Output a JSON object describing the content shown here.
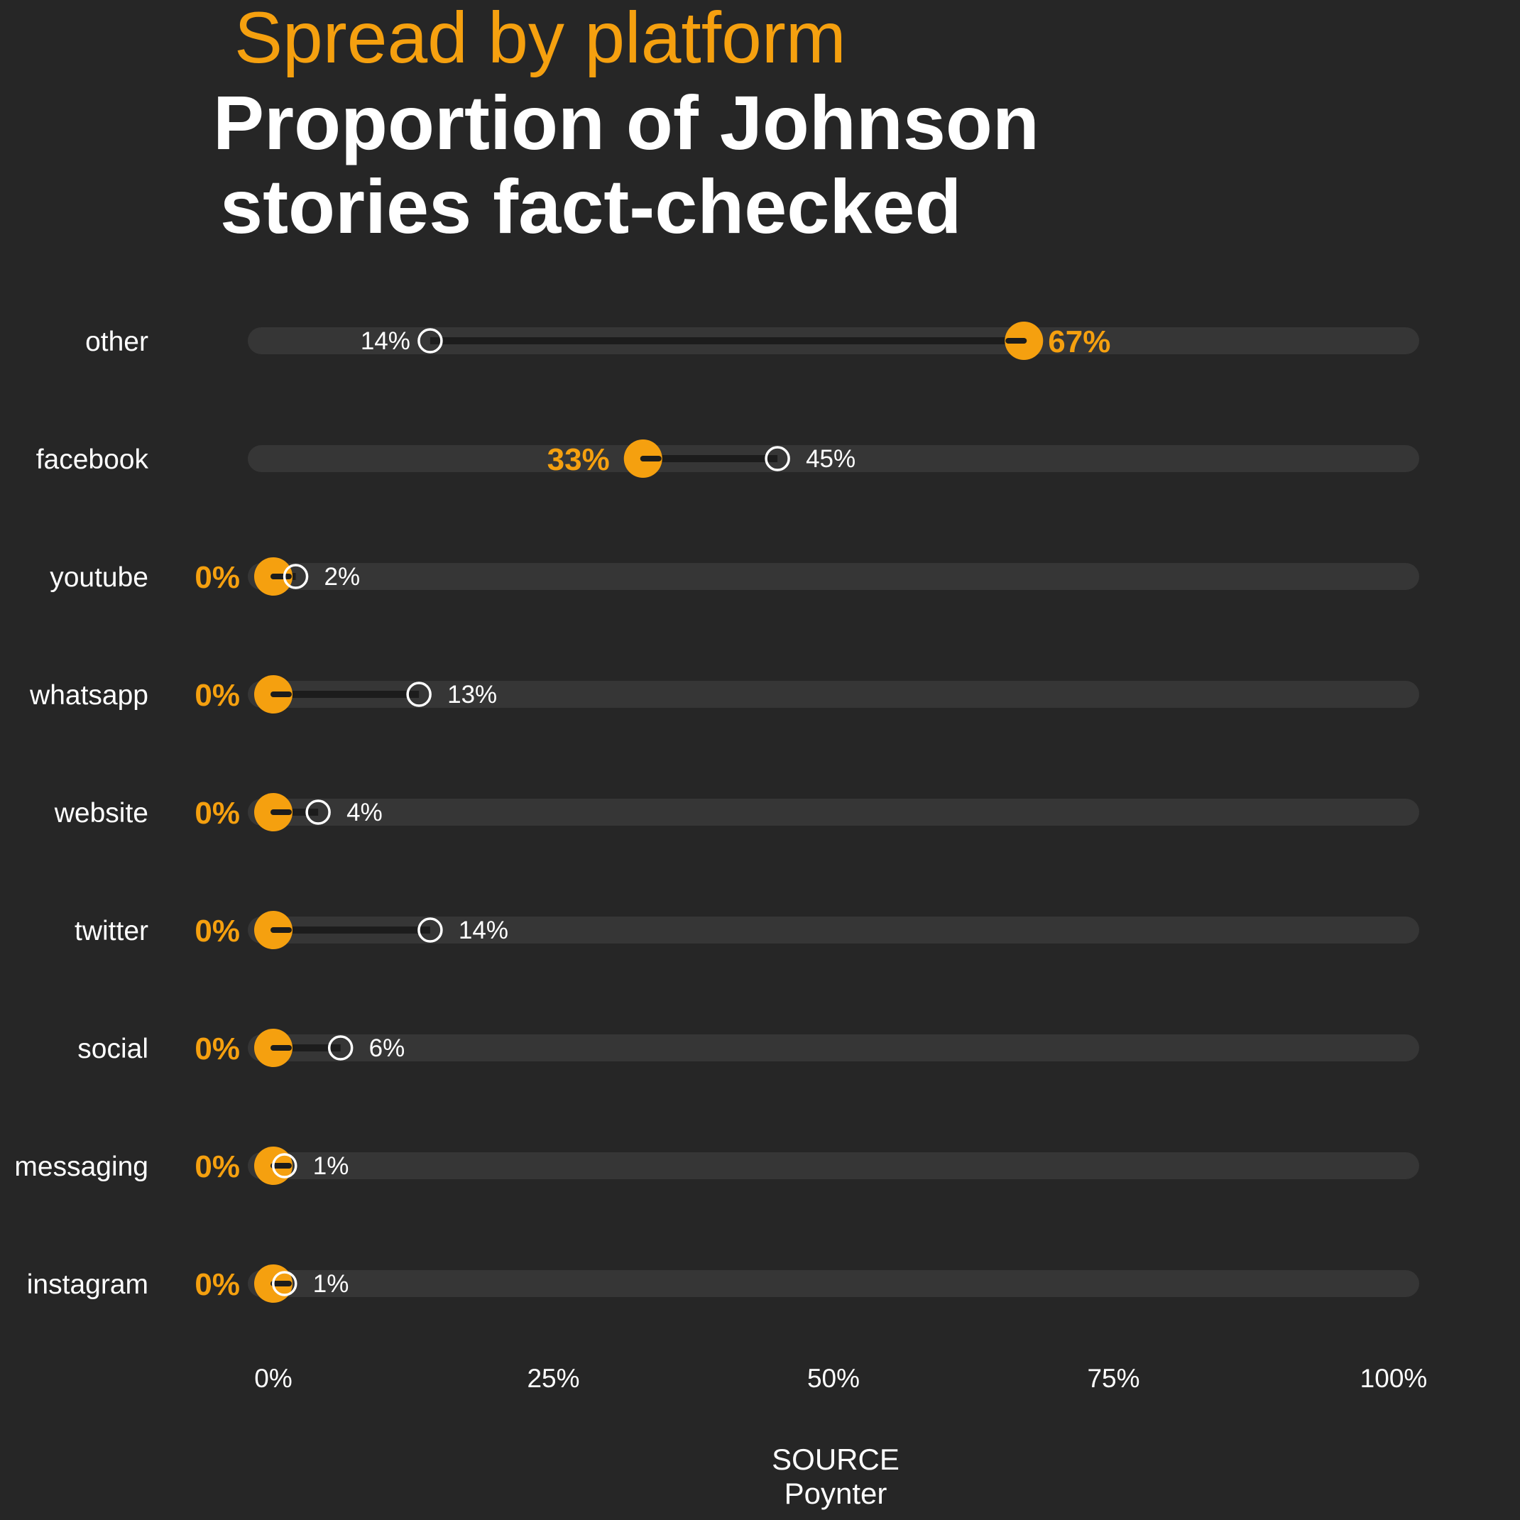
{
  "colors": {
    "background": "#262626",
    "track": "#363636",
    "connector": "#1c1c1c",
    "accent": "#f5a00f",
    "text": "#ffffff",
    "open_marker_stroke": "#ffffff"
  },
  "header": {
    "subtitle": "Spread by platform",
    "title_lines": [
      "Proportion of Johnson",
      "stories fact-checked"
    ]
  },
  "footer": {
    "source_label": "SOURCE",
    "source_name": "Poynter"
  },
  "chart_data": {
    "type": "dumbbell",
    "title": "Proportion of Johnson stories fact-checked",
    "subtitle": "Spread by platform",
    "xlim": [
      0,
      100
    ],
    "x_unit": "%",
    "x_ticks": [
      0,
      25,
      50,
      75,
      100
    ],
    "x_tick_labels": [
      "0%",
      "25%",
      "50%",
      "75%",
      "100%"
    ],
    "legend": "none",
    "grid": false,
    "categories": [
      "other",
      "facebook",
      "youtube",
      "whatsapp",
      "website",
      "twitter",
      "social",
      "messaging",
      "instagram"
    ],
    "series": [
      {
        "marker": "filled orange circle",
        "values": [
          67,
          33,
          0,
          0,
          0,
          0,
          0,
          0,
          0
        ],
        "labels": [
          "67%",
          "33%",
          "0%",
          "0%",
          "0%",
          "0%",
          "0%",
          "0%",
          "0%"
        ]
      },
      {
        "marker": "open white circle",
        "values": [
          14,
          45,
          2,
          13,
          4,
          14,
          6,
          1,
          1
        ],
        "labels": [
          "14%",
          "45%",
          "2%",
          "13%",
          "4%",
          "14%",
          "6%",
          "1%",
          "1%"
        ]
      }
    ]
  }
}
